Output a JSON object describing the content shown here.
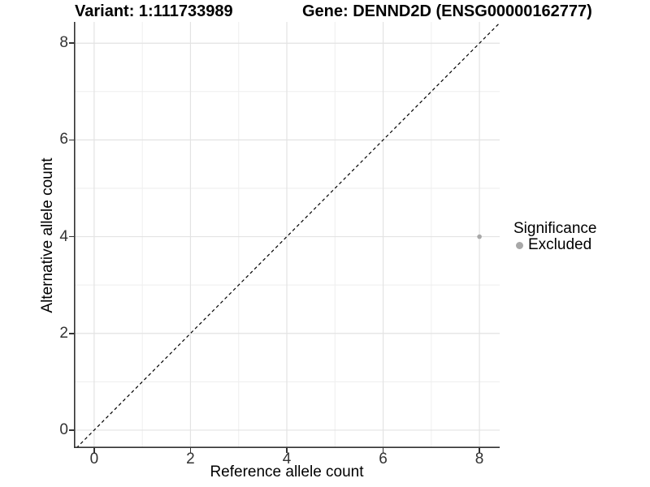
{
  "chart_data": {
    "type": "scatter",
    "titles": {
      "left": "Variant: 1:111733989",
      "right": "Gene: DENND2D (ENSG00000162777)"
    },
    "xlabel": "Reference allele count",
    "ylabel": "Alternative allele count",
    "x_ticks": [
      0,
      2,
      4,
      6,
      8
    ],
    "y_ticks": [
      0,
      2,
      4,
      6,
      8
    ],
    "x_minor": [
      1,
      3,
      5,
      7
    ],
    "y_minor": [
      1,
      3,
      5,
      7
    ],
    "xlim": [
      -0.42,
      8.42
    ],
    "ylim": [
      -0.37,
      8.44
    ],
    "grid": "major+minor",
    "identity_line": {
      "slope": 1,
      "intercept": 0,
      "style": "dashed",
      "color": "#000000"
    },
    "points": [
      {
        "x": 8,
        "y": 4,
        "significance": "Excluded"
      }
    ],
    "point_radius": 2.8,
    "legend": {
      "title": "Significance",
      "position": "right",
      "items": [
        {
          "label": "Excluded",
          "color": "#a8a8a8"
        }
      ]
    },
    "colors": {
      "point": "#a8a8a8",
      "grid_major": "#e3e3e3",
      "grid_minor": "#eeeeee",
      "axis_line": "#333333",
      "tick_label": "#333333",
      "background": "#ffffff"
    }
  }
}
